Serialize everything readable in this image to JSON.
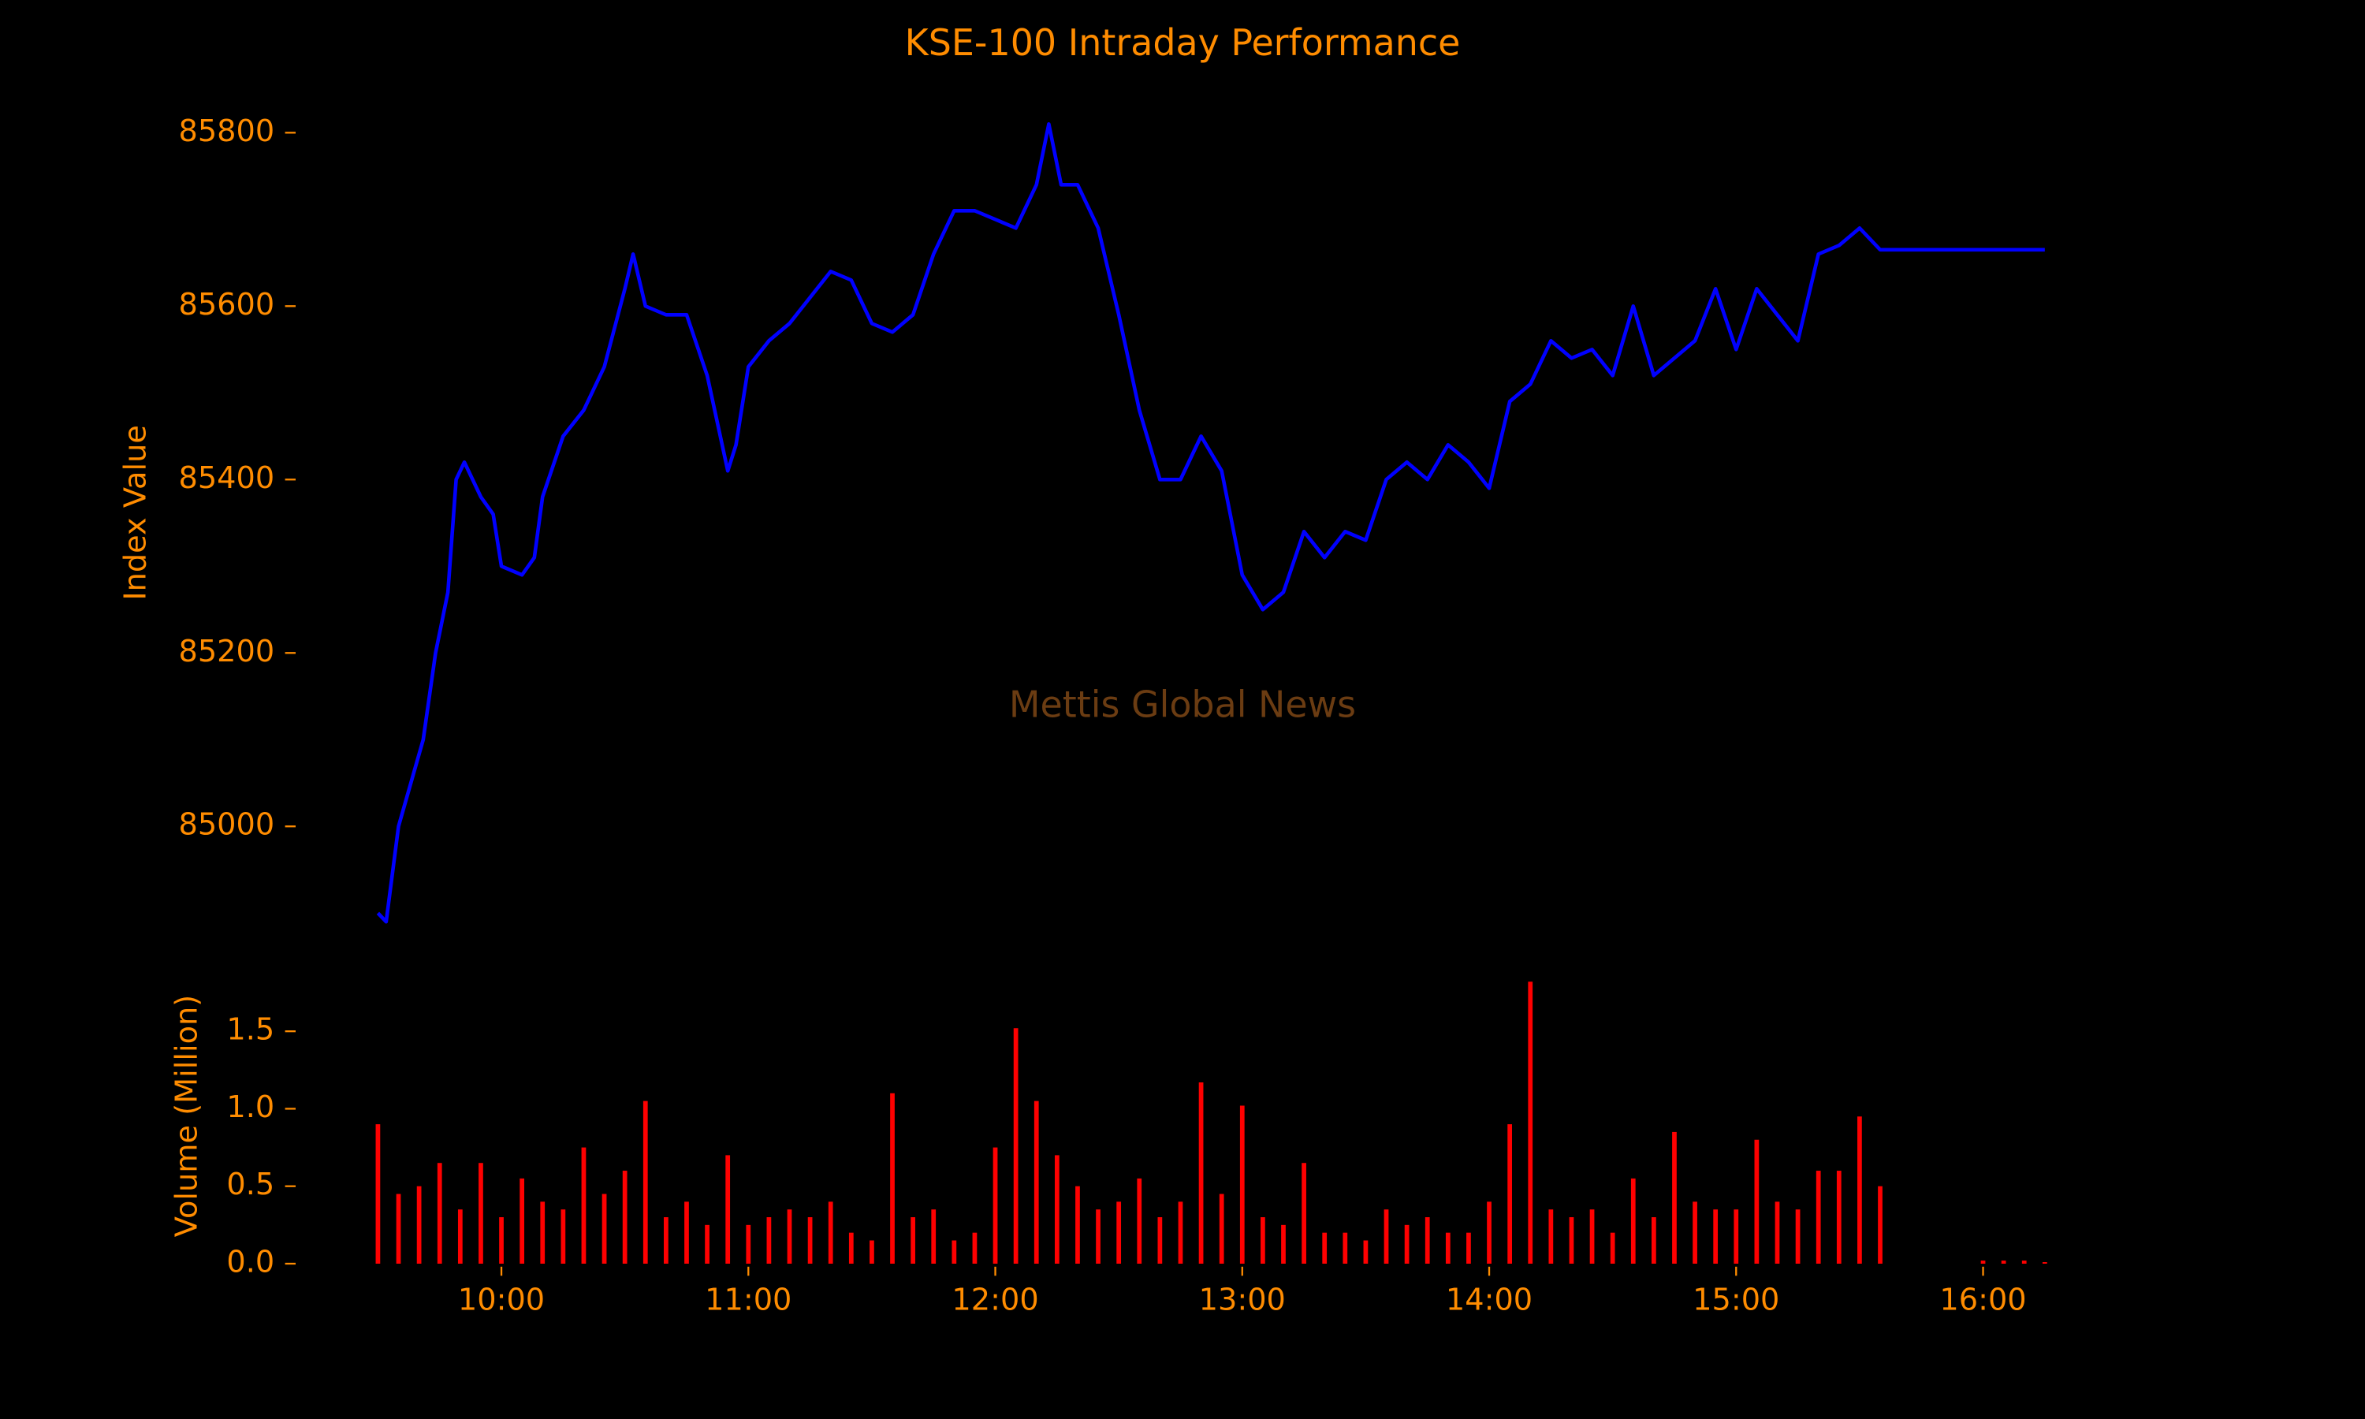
{
  "chart_data": [
    {
      "type": "line",
      "title": "KSE-100 Intraday Performance",
      "ylabel": "Index Value",
      "watermark": "Mettis Global News",
      "xlim": [
        "09:10",
        "16:25"
      ],
      "ylim": [
        84880,
        85830
      ],
      "yticks": [
        85000,
        85200,
        85400,
        85600,
        85800
      ],
      "series": [
        {
          "color": "#0000ff",
          "x": [
            "09:30",
            "09:32",
            "09:35",
            "09:38",
            "09:41",
            "09:44",
            "09:47",
            "09:49",
            "09:51",
            "09:55",
            "09:58",
            "10:00",
            "10:05",
            "10:08",
            "10:10",
            "10:15",
            "10:20",
            "10:25",
            "10:30",
            "10:32",
            "10:35",
            "10:40",
            "10:45",
            "10:50",
            "10:55",
            "10:57",
            "11:00",
            "11:05",
            "11:10",
            "11:15",
            "11:20",
            "11:25",
            "11:30",
            "11:35",
            "11:40",
            "11:45",
            "11:50",
            "11:55",
            "12:00",
            "12:05",
            "12:10",
            "12:13",
            "12:16",
            "12:20",
            "12:25",
            "12:30",
            "12:35",
            "12:40",
            "12:45",
            "12:50",
            "12:55",
            "13:00",
            "13:05",
            "13:10",
            "13:15",
            "13:20",
            "13:25",
            "13:30",
            "13:35",
            "13:40",
            "13:45",
            "13:50",
            "13:55",
            "14:00",
            "14:05",
            "14:10",
            "14:15",
            "14:20",
            "14:25",
            "14:30",
            "14:35",
            "14:40",
            "14:45",
            "14:50",
            "14:55",
            "15:00",
            "15:05",
            "15:10",
            "15:15",
            "15:20",
            "15:25",
            "15:30",
            "15:35",
            "16:15"
          ],
          "values": [
            84900,
            84890,
            85000,
            85050,
            85100,
            85200,
            85270,
            85400,
            85420,
            85380,
            85360,
            85300,
            85290,
            85310,
            85380,
            85450,
            85480,
            85530,
            85620,
            85660,
            85600,
            85590,
            85590,
            85520,
            85410,
            85440,
            85530,
            85560,
            85580,
            85610,
            85640,
            85630,
            85580,
            85570,
            85590,
            85660,
            85710,
            85710,
            85700,
            85690,
            85740,
            85810,
            85740,
            85740,
            85690,
            85590,
            85480,
            85400,
            85400,
            85450,
            85410,
            85290,
            85250,
            85270,
            85340,
            85310,
            85340,
            85330,
            85400,
            85420,
            85400,
            85440,
            85420,
            85390,
            85490,
            85510,
            85560,
            85540,
            85550,
            85520,
            85600,
            85520,
            85540,
            85560,
            85620,
            85550,
            85620,
            85590,
            85560,
            85660,
            85670,
            85690,
            85665,
            85665
          ]
        }
      ]
    },
    {
      "type": "bar",
      "ylabel": "Volume (Million)",
      "xlim": [
        "09:10",
        "16:25"
      ],
      "xticks": [
        "10:00",
        "11:00",
        "12:00",
        "13:00",
        "14:00",
        "15:00",
        "16:00"
      ],
      "ylim": [
        0,
        1.82
      ],
      "yticks": [
        {
          "value": 0,
          "label": "0.0"
        },
        0.5,
        {
          "value": 1,
          "label": "1.0"
        },
        1.5
      ],
      "color": "#ff0000",
      "x": [
        "09:30",
        "09:35",
        "09:40",
        "09:45",
        "09:50",
        "09:55",
        "10:00",
        "10:05",
        "10:10",
        "10:15",
        "10:20",
        "10:25",
        "10:30",
        "10:35",
        "10:40",
        "10:45",
        "10:50",
        "10:55",
        "11:00",
        "11:05",
        "11:10",
        "11:15",
        "11:20",
        "11:25",
        "11:30",
        "11:35",
        "11:40",
        "11:45",
        "11:50",
        "11:55",
        "12:00",
        "12:05",
        "12:10",
        "12:15",
        "12:20",
        "12:25",
        "12:30",
        "12:35",
        "12:40",
        "12:45",
        "12:50",
        "12:55",
        "13:00",
        "13:05",
        "13:10",
        "13:15",
        "13:20",
        "13:25",
        "13:30",
        "13:35",
        "13:40",
        "13:45",
        "13:50",
        "13:55",
        "14:00",
        "14:05",
        "14:10",
        "14:15",
        "14:20",
        "14:25",
        "14:30",
        "14:35",
        "14:40",
        "14:45",
        "14:50",
        "14:55",
        "15:00",
        "15:05",
        "15:10",
        "15:15",
        "15:20",
        "15:25",
        "15:30",
        "15:35",
        "16:00",
        "16:05",
        "16:10",
        "16:15"
      ],
      "values": [
        0.9,
        0.45,
        0.5,
        0.65,
        0.35,
        0.65,
        0.3,
        0.55,
        0.4,
        0.35,
        0.75,
        0.45,
        0.6,
        1.05,
        0.3,
        0.4,
        0.25,
        0.7,
        0.25,
        0.3,
        0.35,
        0.3,
        0.4,
        0.2,
        0.15,
        1.1,
        0.3,
        0.35,
        0.15,
        0.2,
        0.75,
        1.52,
        1.05,
        0.7,
        0.5,
        0.35,
        0.4,
        0.55,
        0.3,
        0.4,
        1.17,
        0.45,
        1.02,
        0.3,
        0.25,
        0.65,
        0.2,
        0.2,
        0.15,
        0.35,
        0.25,
        0.3,
        0.2,
        0.2,
        0.4,
        0.9,
        1.82,
        0.35,
        0.3,
        0.35,
        0.2,
        0.55,
        0.3,
        0.85,
        0.4,
        0.35,
        0.35,
        0.8,
        0.4,
        0.35,
        0.6,
        0.6,
        0.95,
        0.5,
        0.02,
        0.02,
        0.02,
        0.01
      ]
    }
  ]
}
